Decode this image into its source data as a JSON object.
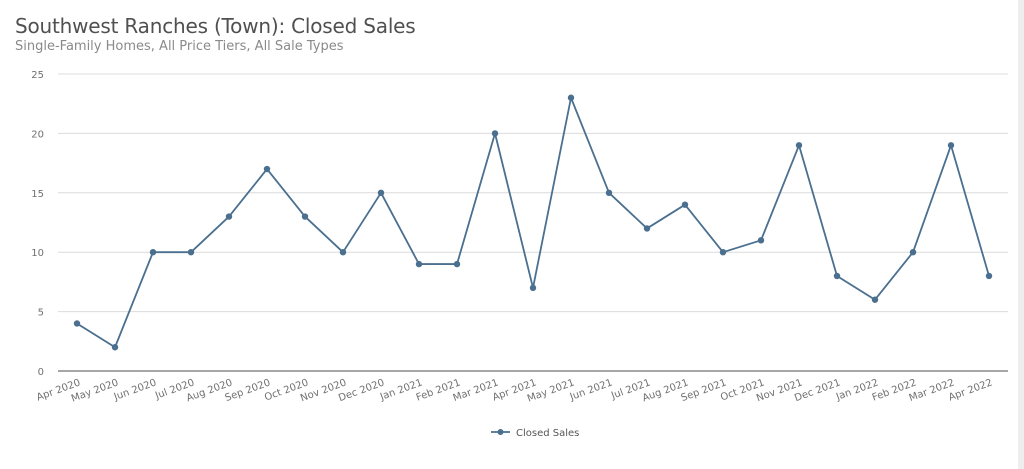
{
  "header": {
    "title": "Southwest Ranches (Town): Closed Sales",
    "subtitle": "Single-Family Homes, All Price Tiers, All Sale Types"
  },
  "legend": {
    "label": "Closed Sales"
  },
  "colors": {
    "series": "#4a6f8f",
    "grid": "#dcdcdc",
    "axis": "#707070",
    "tick_text": "#707070"
  },
  "chart_data": {
    "type": "line",
    "title": "Southwest Ranches (Town): Closed Sales",
    "subtitle": "Single-Family Homes, All Price Tiers, All Sale Types",
    "xlabel": "",
    "ylabel": "",
    "ylim": [
      0,
      25
    ],
    "yticks": [
      0,
      5,
      10,
      15,
      20,
      25
    ],
    "grid": true,
    "legend_position": "bottom",
    "categories": [
      "Apr 2020",
      "May 2020",
      "Jun 2020",
      "Jul 2020",
      "Aug 2020",
      "Sep 2020",
      "Oct 2020",
      "Nov 2020",
      "Dec 2020",
      "Jan 2021",
      "Feb 2021",
      "Mar 2021",
      "Apr 2021",
      "May 2021",
      "Jun 2021",
      "Jul 2021",
      "Aug 2021",
      "Sep 2021",
      "Oct 2021",
      "Nov 2021",
      "Dec 2021",
      "Jan 2022",
      "Feb 2022",
      "Mar 2022",
      "Apr 2022"
    ],
    "series": [
      {
        "name": "Closed Sales",
        "values": [
          4,
          2,
          10,
          10,
          13,
          17,
          13,
          10,
          15,
          9,
          9,
          20,
          7,
          23,
          15,
          12,
          14,
          10,
          11,
          19,
          8,
          6,
          10,
          19,
          8
        ]
      }
    ]
  }
}
